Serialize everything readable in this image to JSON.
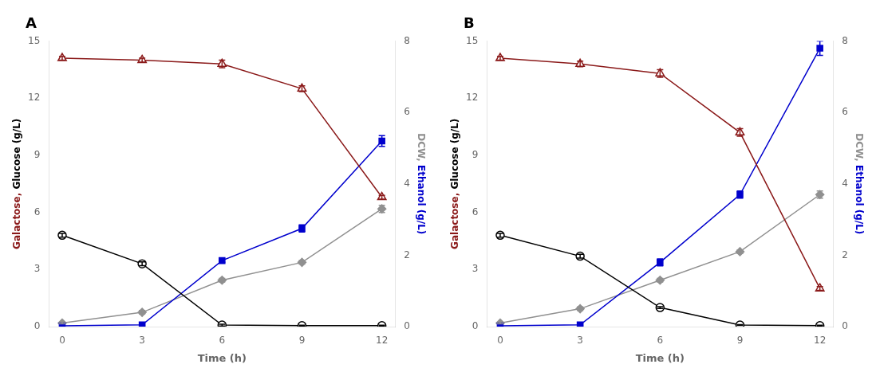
{
  "chart_data": [
    {
      "type": "line",
      "title": "A",
      "xlabel": "Time (h)",
      "ylabel": [
        {
          "text": "Galactose,",
          "color": "#8B1A1A"
        },
        {
          "text": "Glucose (g/L)",
          "color": "#000000"
        }
      ],
      "y2label": [
        {
          "text": "DCW,",
          "color": "#909090"
        },
        {
          "text": "Ethanol (g/L)",
          "color": "#0000CD"
        }
      ],
      "x": [
        0,
        3,
        6,
        9,
        12
      ],
      "xlim": [
        -0.5,
        12.5
      ],
      "xticks": [
        0,
        3,
        6,
        9,
        12
      ],
      "ylim": [
        0,
        15
      ],
      "yticks": [
        0,
        3,
        6,
        9,
        12,
        15
      ],
      "y2lim": [
        0,
        8
      ],
      "y2ticks": [
        0,
        2,
        4,
        6,
        8
      ],
      "grid": false,
      "series": [
        {
          "color": "#8B1A1A",
          "marker": "triangle-open",
          "values": [
            14.1,
            14.0,
            13.8,
            12.5,
            6.8
          ],
          "errors": [
            0.1,
            0.1,
            0.2,
            0.15,
            0.1
          ]
        },
        {
          "color": "#000000",
          "marker": "circle-open",
          "values": [
            4.8,
            3.3,
            0.08,
            0.05,
            0.05
          ],
          "errors": [
            0.1,
            0.1,
            0.05,
            0.02,
            0.02
          ]
        },
        {
          "color": "#0000CD",
          "marker": "square",
          "axis": "y2",
          "values": [
            0.02,
            0.05,
            1.85,
            2.75,
            5.2
          ],
          "errors": [
            0.01,
            0.02,
            0.05,
            0.1,
            0.15
          ]
        },
        {
          "color": "#909090",
          "marker": "diamond",
          "axis": "y2",
          "values": [
            0.1,
            0.4,
            1.3,
            1.8,
            3.3
          ],
          "errors": [
            0.02,
            0.05,
            0.05,
            0.05,
            0.1
          ]
        }
      ]
    },
    {
      "type": "line",
      "title": "B",
      "xlabel": "Time (h)",
      "ylabel": [
        {
          "text": "Galactose,",
          "color": "#8B1A1A"
        },
        {
          "text": "Glucose (g/L)",
          "color": "#000000"
        }
      ],
      "y2label": [
        {
          "text": "DCW,",
          "color": "#909090"
        },
        {
          "text": "Ethanol (g/L)",
          "color": "#0000CD"
        }
      ],
      "x": [
        0,
        3,
        6,
        9,
        12
      ],
      "xlim": [
        -0.5,
        12.5
      ],
      "xticks": [
        0,
        3,
        6,
        9,
        12
      ],
      "ylim": [
        0,
        15
      ],
      "yticks": [
        0,
        3,
        6,
        9,
        12,
        15
      ],
      "y2lim": [
        0,
        8
      ],
      "y2ticks": [
        0,
        2,
        4,
        6,
        8
      ],
      "grid": false,
      "series": [
        {
          "color": "#8B1A1A",
          "marker": "triangle-open",
          "values": [
            14.1,
            13.8,
            13.3,
            10.2,
            2.0
          ],
          "errors": [
            0.1,
            0.15,
            0.2,
            0.2,
            0.1
          ]
        },
        {
          "color": "#000000",
          "marker": "circle-open",
          "values": [
            4.8,
            3.7,
            1.0,
            0.08,
            0.05
          ],
          "errors": [
            0.1,
            0.1,
            0.05,
            0.02,
            0.02
          ]
        },
        {
          "color": "#0000CD",
          "marker": "square",
          "axis": "y2",
          "values": [
            0.02,
            0.05,
            1.8,
            3.7,
            7.8
          ],
          "errors": [
            0.01,
            0.02,
            0.1,
            0.1,
            0.2
          ]
        },
        {
          "color": "#909090",
          "marker": "diamond",
          "axis": "y2",
          "values": [
            0.1,
            0.5,
            1.3,
            2.1,
            3.7
          ],
          "errors": [
            0.02,
            0.05,
            0.05,
            0.05,
            0.1
          ]
        }
      ]
    }
  ]
}
